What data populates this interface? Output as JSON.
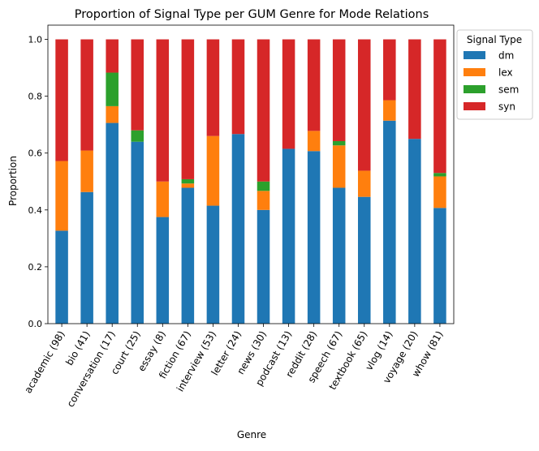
{
  "chart_data": {
    "type": "bar",
    "stacked": true,
    "title": "Proportion of Signal Type per GUM Genre for Mode Relations",
    "xlabel": "Genre",
    "ylabel": "Proportion",
    "ylim": [
      0,
      1.05
    ],
    "yticks": [
      "0.0",
      "0.2",
      "0.4",
      "0.6",
      "0.8",
      "1.0"
    ],
    "grid": false,
    "legend_title": "Signal Type",
    "legend_position": "outside-upper-right",
    "categories": [
      "academic (98)",
      "bio (41)",
      "conversation (17)",
      "court (25)",
      "essay (8)",
      "fiction (67)",
      "interview (53)",
      "letter (24)",
      "news (30)",
      "podcast (13)",
      "reddit (28)",
      "speech (67)",
      "textbook (65)",
      "vlog (14)",
      "voyage (20)",
      "whow (81)"
    ],
    "series": [
      {
        "name": "dm",
        "color": "#1f77b4",
        "values": [
          0.327,
          0.463,
          0.706,
          0.64,
          0.375,
          0.478,
          0.415,
          0.667,
          0.4,
          0.615,
          0.607,
          0.478,
          0.446,
          0.714,
          0.65,
          0.407
        ]
      },
      {
        "name": "lex",
        "color": "#ff7f0e",
        "values": [
          0.245,
          0.146,
          0.059,
          0.0,
          0.125,
          0.015,
          0.245,
          0.0,
          0.067,
          0.0,
          0.071,
          0.149,
          0.092,
          0.072,
          0.0,
          0.111
        ]
      },
      {
        "name": "sem",
        "color": "#2ca02c",
        "values": [
          0.0,
          0.0,
          0.118,
          0.04,
          0.0,
          0.015,
          0.0,
          0.0,
          0.033,
          0.0,
          0.0,
          0.015,
          0.0,
          0.0,
          0.0,
          0.012
        ]
      },
      {
        "name": "syn",
        "color": "#d62728",
        "values": [
          0.428,
          0.391,
          0.117,
          0.32,
          0.5,
          0.492,
          0.34,
          0.333,
          0.5,
          0.385,
          0.322,
          0.358,
          0.462,
          0.214,
          0.35,
          0.47
        ]
      }
    ]
  }
}
